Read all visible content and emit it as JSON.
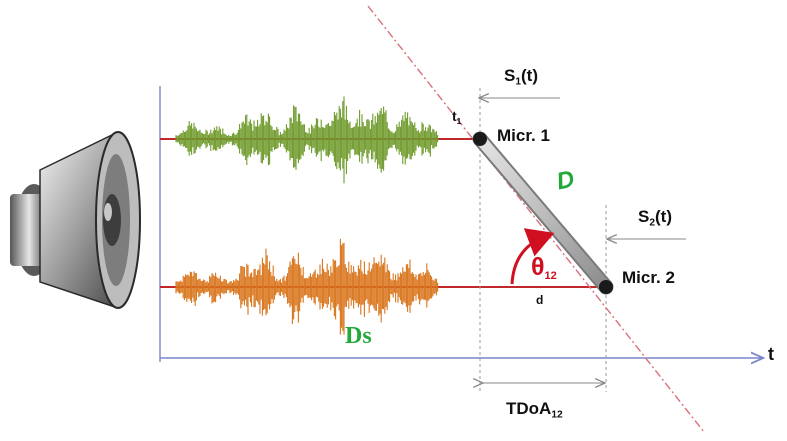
{
  "labels": {
    "s1": "S",
    "s1_sub": "1",
    "s1_tail": "(t)",
    "t1": "t",
    "t1_sub": "1",
    "micr1": "Micr. 1",
    "d_big": "D",
    "s2": "S",
    "s2_sub": "2",
    "s2_tail": "(t)",
    "theta": "θ",
    "theta_sub": "12",
    "micr2": "Micr. 2",
    "d_small": "d",
    "ds": "Ds",
    "t_axis": "t",
    "tdoa": "TDoA",
    "tdoa_sub": "12"
  },
  "icons": {
    "speaker": "speaker-icon"
  },
  "colors": {
    "signal_top": "#6f9a2c",
    "signal_bottom": "#d9741b",
    "signal_line": "#c0282c",
    "axis": "#7a86c8",
    "dashed_red": "#d9707a",
    "dashed_gray": "#9a9a9a",
    "green_text": "#23a83a",
    "red_text": "#d01020",
    "mic_bar": "#c9c9c9"
  }
}
